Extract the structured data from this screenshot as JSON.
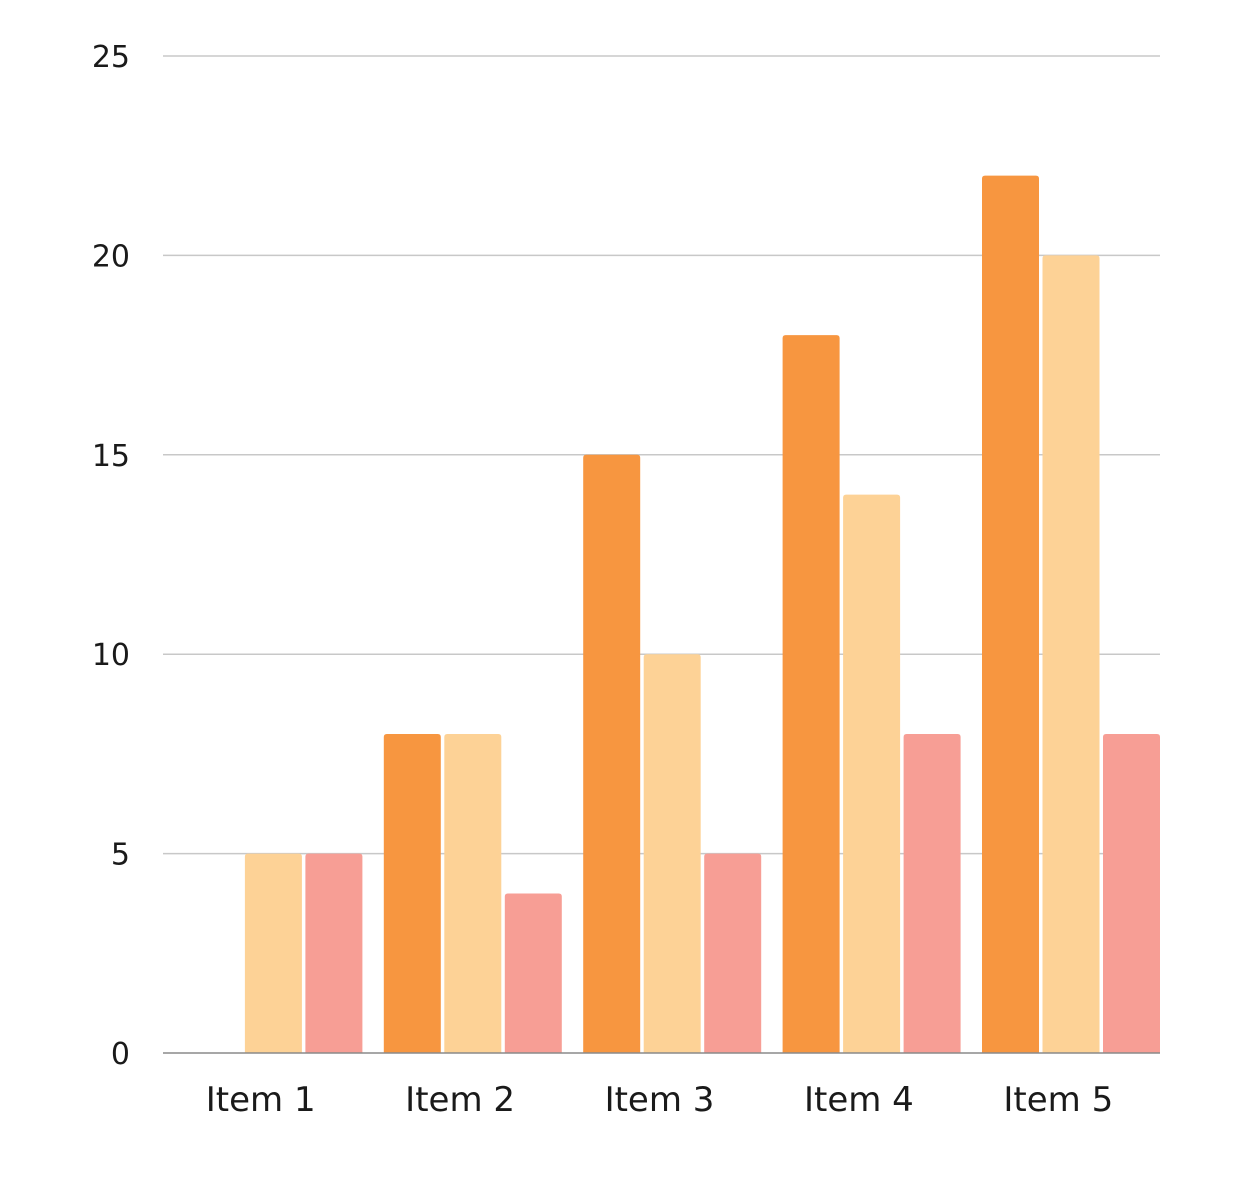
{
  "chart_data": {
    "type": "bar",
    "categories": [
      "Item 1",
      "Item 2",
      "Item 3",
      "Item 4",
      "Item 5"
    ],
    "series": [
      {
        "color": "#F79640",
        "values": [
          0,
          8,
          15,
          18,
          22
        ]
      },
      {
        "color": "#FDD296",
        "values": [
          5,
          8,
          10,
          14,
          20
        ]
      },
      {
        "color": "#F79E95",
        "values": [
          5,
          4,
          5,
          8,
          8
        ]
      }
    ],
    "ylim": [
      0,
      25
    ],
    "yticks": [
      0,
      5,
      10,
      15,
      20,
      25
    ],
    "grid": true,
    "legend": "none",
    "title": "",
    "xlabel": "",
    "ylabel": ""
  }
}
